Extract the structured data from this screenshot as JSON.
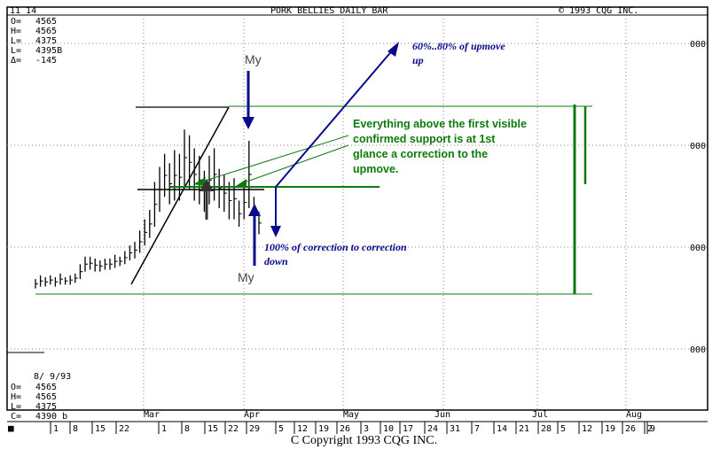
{
  "header": {
    "date": "11 14",
    "title": "PORK BELLIES DAILY BAR",
    "copyright_corner": "© 1993 CQG INC."
  },
  "top_stats": {
    "labels": [
      "O=",
      "H=",
      "L=",
      "L=",
      "Δ="
    ],
    "values": [
      "4565",
      "4565",
      "4375",
      "4395B",
      "-145"
    ]
  },
  "bottom_stats": {
    "date": "8/ 9/93",
    "labels": [
      "O=",
      "H=",
      "L=",
      "C="
    ],
    "values": [
      "4565",
      "4565",
      "4375",
      "4390 b"
    ]
  },
  "right_axis_labels": [
    "000",
    "000",
    "000",
    "000"
  ],
  "month_labels": [
    "Mar",
    "Apr",
    "May",
    "Jun",
    "Jul",
    "Aug"
  ],
  "day_labels": [
    "1",
    "8",
    "15",
    "22",
    "1",
    "8",
    "15",
    "22",
    "29",
    "5",
    "12",
    "19",
    "26",
    "3",
    "10",
    "17",
    "24",
    "31",
    "7",
    "14",
    "21",
    "28",
    "5",
    "12",
    "19",
    "26",
    "2",
    "9"
  ],
  "annotations": {
    "upmove_target": "60%..80% of upmove\nup",
    "correction_text": "Everything above the first visible\nconfirmed support is at 1st\nglance a correction to the\nupmove.",
    "correction_target": "100% of correction to correction\ndown",
    "my_top": "My",
    "my_bottom": "My"
  },
  "footer": {
    "copyright": "C Copyright 1993 CQG INC."
  },
  "colors": {
    "annotation_blue": "#0a0a8c",
    "annotation_green": "#0d7a0d",
    "bars": "#000000"
  },
  "chart_data": {
    "type": "bar",
    "title": "PORK BELLIES DAILY BAR",
    "x_axis": "date (daily)",
    "series": [
      {
        "name": "",
        "x": [
          "Feb 1",
          "Feb 2",
          "Feb 3",
          "Feb 4",
          "Feb 5",
          "Feb 8",
          "Feb 9",
          "Feb 10",
          "Feb 11",
          "Feb 12",
          "Feb 15",
          "Feb 16",
          "Feb 17",
          "Feb 18",
          "Feb 19",
          "Feb 22",
          "Feb 23",
          "Feb 24",
          "Feb 25",
          "Feb 26",
          "Mar 1",
          "Mar 2",
          "Mar 3",
          "Mar 4",
          "Mar 5",
          "Mar 8",
          "Mar 9",
          "Mar 10",
          "Mar 11",
          "Mar 12",
          "Mar 15",
          "Mar 16",
          "Mar 17",
          "Mar 18",
          "Mar 19",
          "Mar 22",
          "Mar 23",
          "Mar 24",
          "Mar 25",
          "Mar 26",
          "Mar 29",
          "Mar 30",
          "Mar 31",
          "Apr 1",
          "Apr 2",
          "Apr 5"
        ],
        "high": [
          0.08,
          0.1,
          0.09,
          0.1,
          0.09,
          0.11,
          0.09,
          0.1,
          0.11,
          0.16,
          0.2,
          0.2,
          0.19,
          0.18,
          0.19,
          0.19,
          0.21,
          0.2,
          0.23,
          0.26,
          0.28,
          0.34,
          0.4,
          0.45,
          0.6,
          0.68,
          0.75,
          0.7,
          0.77,
          0.75,
          0.88,
          0.85,
          0.78,
          0.74,
          0.66,
          0.74,
          0.78,
          0.67,
          0.64,
          0.6,
          0.62,
          0.5,
          0.58,
          0.82,
          0.52,
          0.44
        ],
        "low": [
          0.03,
          0.04,
          0.04,
          0.05,
          0.04,
          0.05,
          0.05,
          0.05,
          0.06,
          0.08,
          0.12,
          0.13,
          0.12,
          0.12,
          0.13,
          0.13,
          0.14,
          0.15,
          0.16,
          0.18,
          0.19,
          0.22,
          0.26,
          0.3,
          0.36,
          0.44,
          0.52,
          0.48,
          0.5,
          0.5,
          0.58,
          0.56,
          0.5,
          0.48,
          0.44,
          0.48,
          0.5,
          0.46,
          0.44,
          0.4,
          0.4,
          0.36,
          0.4,
          0.46,
          0.36,
          0.32
        ]
      }
    ],
    "lines": [
      {
        "label": "trendline",
        "x": [
          "Mar 1",
          "Mar 17"
        ]
      },
      {
        "label": "top horizontal",
        "y": 0.88
      },
      {
        "label": "support horizontal",
        "y": 0.43
      },
      {
        "label": "base horizontal",
        "y": 0.0
      }
    ],
    "ylim": [
      0,
      1
    ]
  }
}
